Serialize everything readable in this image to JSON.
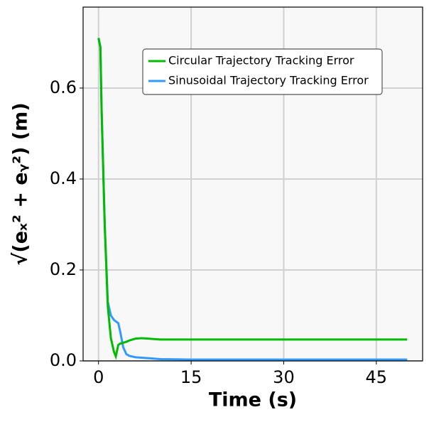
{
  "chart_data": {
    "type": "line",
    "x_label": "Time (s)",
    "y_label": "√(eₓ² + eᵧ²) (m)",
    "x": [
      0,
      0.3,
      0.5,
      1,
      1.5,
      2,
      2.5,
      2.8,
      3.2,
      3.5,
      4,
      4.5,
      5,
      6,
      7,
      8,
      10,
      15,
      20,
      30,
      40,
      50
    ],
    "series": [
      {
        "name": "Circular Trajectory Tracking Error",
        "color": "#00bb00",
        "values": [
          0.71,
          0.69,
          0.55,
          0.3,
          0.12,
          0.05,
          0.02,
          0.01,
          0.035,
          0.038,
          0.04,
          0.042,
          0.045,
          0.049,
          0.05,
          0.049,
          0.047,
          0.047,
          0.047,
          0.047,
          0.047,
          0.047
        ]
      },
      {
        "name": "Sinusoidal Trajectory Tracking Error",
        "color": "#3399ff",
        "values": [
          0.71,
          0.69,
          0.55,
          0.3,
          0.13,
          0.1,
          0.09,
          0.087,
          0.083,
          0.065,
          0.03,
          0.015,
          0.011,
          0.008,
          0.007,
          0.006,
          0.004,
          0.003,
          0.003,
          0.003,
          0.003,
          0.003
        ]
      }
    ],
    "xlim": [
      -2.5,
      52.5
    ],
    "ylim": [
      0,
      0.778
    ],
    "xticks": [
      0,
      15,
      30,
      45
    ],
    "yticks": [
      {
        "value": 0,
        "label": "0.0"
      },
      0.2,
      0.4,
      0.6
    ],
    "grid": true,
    "legend": "upper right"
  }
}
